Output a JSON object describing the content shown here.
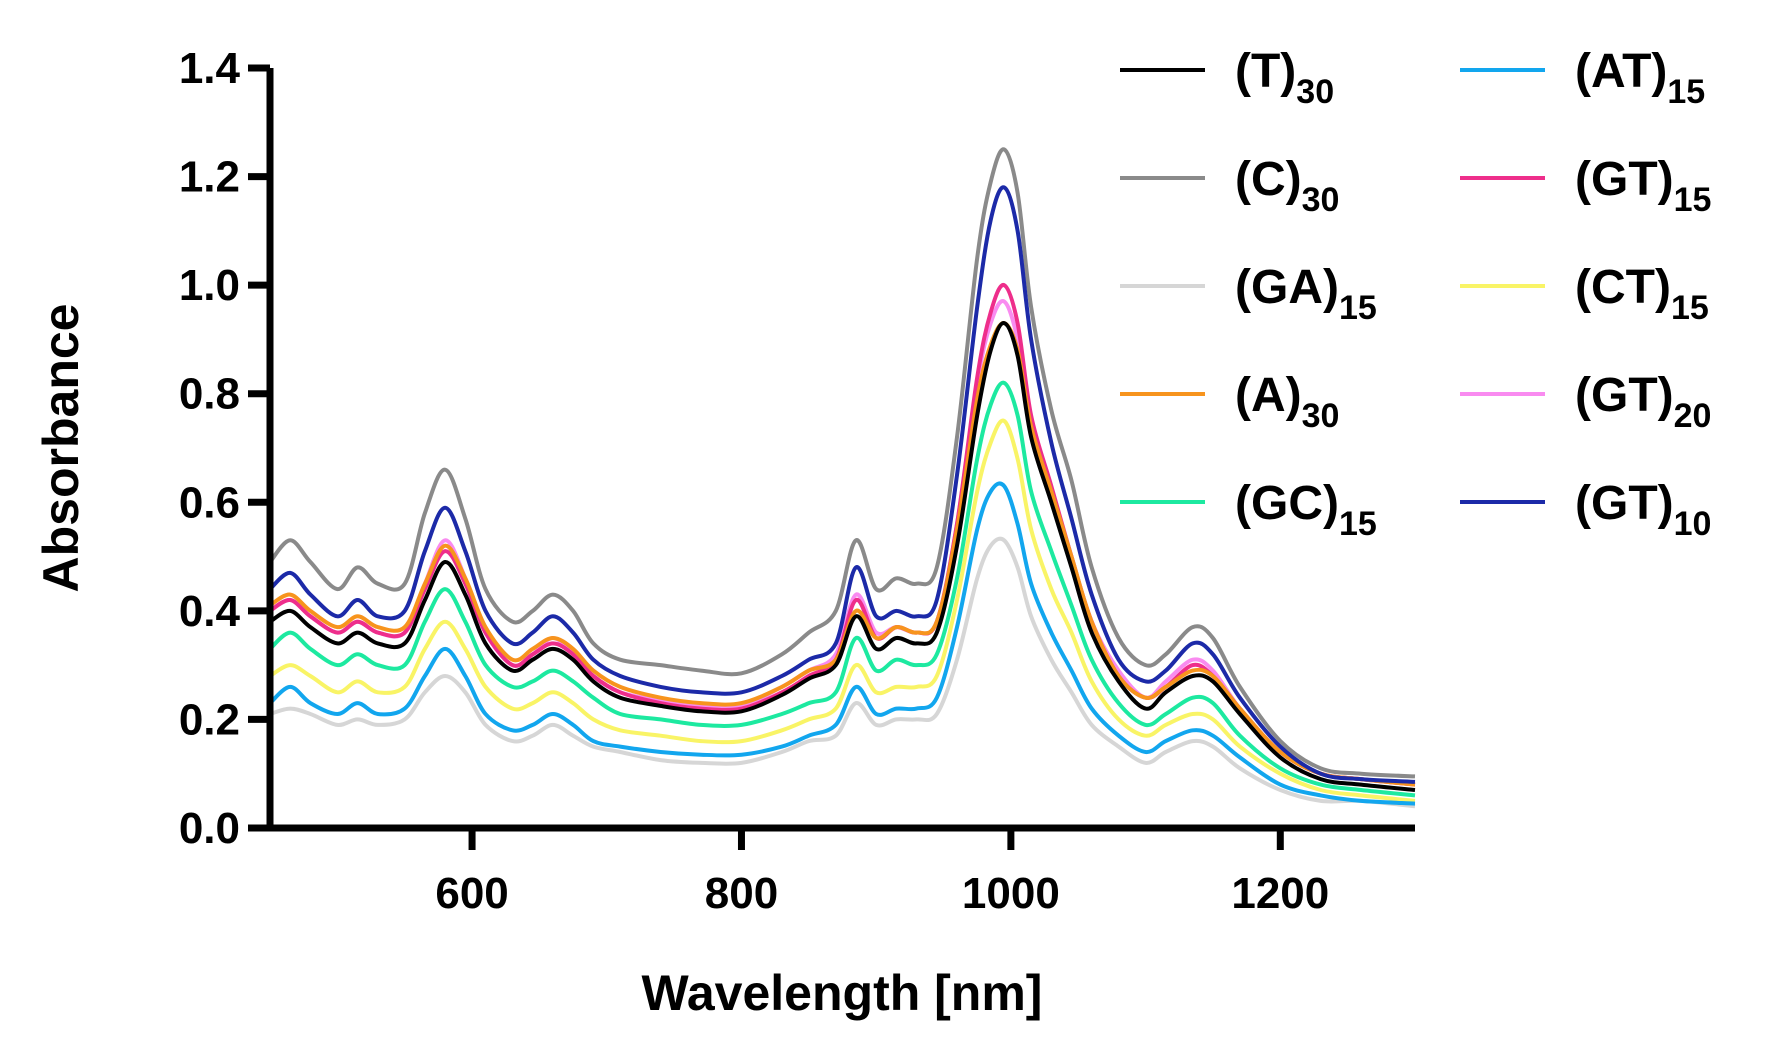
{
  "chart_data": {
    "type": "line",
    "xlabel": "Wavelength [nm]",
    "ylabel": "Absorbance",
    "xlim": [
      450,
      1300
    ],
    "ylim": [
      0.0,
      1.4
    ],
    "x_ticks": [
      600,
      800,
      1000,
      1200
    ],
    "x_tick_labels": [
      "600",
      "800",
      "1000",
      "1200"
    ],
    "y_ticks": [
      0.0,
      0.2,
      0.4,
      0.6,
      0.8,
      1.0,
      1.2,
      1.4
    ],
    "y_tick_labels": [
      "0.0",
      "0.2",
      "0.4",
      "0.6",
      "0.8",
      "1.0",
      "1.2",
      "1.4"
    ],
    "grid": false,
    "legend_position": "top-right",
    "x": [
      450,
      465,
      480,
      500,
      515,
      530,
      550,
      565,
      580,
      595,
      610,
      630,
      645,
      660,
      675,
      690,
      710,
      740,
      770,
      800,
      830,
      850,
      870,
      885,
      900,
      915,
      930,
      945,
      960,
      975,
      985,
      995,
      1005,
      1015,
      1030,
      1045,
      1060,
      1080,
      1100,
      1115,
      1135,
      1150,
      1170,
      1200,
      1230,
      1260,
      1300
    ],
    "series": [
      {
        "name": "(T)",
        "sub": "30",
        "color": "#000000",
        "values": [
          0.38,
          0.4,
          0.37,
          0.34,
          0.36,
          0.34,
          0.34,
          0.42,
          0.49,
          0.43,
          0.34,
          0.29,
          0.31,
          0.33,
          0.31,
          0.27,
          0.24,
          0.225,
          0.215,
          0.215,
          0.245,
          0.275,
          0.3,
          0.39,
          0.33,
          0.35,
          0.34,
          0.36,
          0.52,
          0.76,
          0.88,
          0.93,
          0.87,
          0.72,
          0.6,
          0.48,
          0.36,
          0.27,
          0.22,
          0.25,
          0.28,
          0.27,
          0.21,
          0.13,
          0.09,
          0.08,
          0.07
        ]
      },
      {
        "name": "(C)",
        "sub": "30",
        "color": "#8a8a8a",
        "values": [
          0.49,
          0.53,
          0.49,
          0.44,
          0.48,
          0.45,
          0.45,
          0.58,
          0.66,
          0.57,
          0.44,
          0.38,
          0.4,
          0.43,
          0.4,
          0.34,
          0.31,
          0.3,
          0.29,
          0.285,
          0.32,
          0.36,
          0.4,
          0.53,
          0.44,
          0.46,
          0.45,
          0.48,
          0.72,
          1.05,
          1.19,
          1.25,
          1.17,
          0.96,
          0.77,
          0.64,
          0.48,
          0.35,
          0.3,
          0.32,
          0.37,
          0.35,
          0.26,
          0.16,
          0.11,
          0.1,
          0.095
        ]
      },
      {
        "name": "(GA)",
        "sub": "15",
        "color": "#d6d6d6",
        "values": [
          0.21,
          0.22,
          0.21,
          0.19,
          0.2,
          0.19,
          0.2,
          0.25,
          0.28,
          0.25,
          0.19,
          0.16,
          0.17,
          0.19,
          0.17,
          0.15,
          0.14,
          0.125,
          0.12,
          0.12,
          0.14,
          0.16,
          0.17,
          0.23,
          0.19,
          0.2,
          0.2,
          0.21,
          0.31,
          0.46,
          0.52,
          0.53,
          0.48,
          0.39,
          0.31,
          0.25,
          0.19,
          0.15,
          0.12,
          0.14,
          0.16,
          0.15,
          0.11,
          0.07,
          0.05,
          0.05,
          0.04
        ]
      },
      {
        "name": "(A)",
        "sub": "30",
        "color": "#f7941d",
        "values": [
          0.41,
          0.43,
          0.4,
          0.37,
          0.39,
          0.37,
          0.37,
          0.45,
          0.52,
          0.46,
          0.37,
          0.31,
          0.33,
          0.35,
          0.33,
          0.29,
          0.26,
          0.24,
          0.23,
          0.23,
          0.26,
          0.29,
          0.31,
          0.4,
          0.35,
          0.37,
          0.36,
          0.38,
          0.55,
          0.79,
          0.89,
          0.93,
          0.88,
          0.74,
          0.62,
          0.5,
          0.38,
          0.28,
          0.24,
          0.26,
          0.29,
          0.28,
          0.22,
          0.14,
          0.1,
          0.09,
          0.08
        ]
      },
      {
        "name": "(GC)",
        "sub": "15",
        "color": "#1de9a0",
        "values": [
          0.33,
          0.36,
          0.33,
          0.3,
          0.32,
          0.3,
          0.3,
          0.38,
          0.44,
          0.38,
          0.3,
          0.26,
          0.27,
          0.29,
          0.27,
          0.24,
          0.21,
          0.2,
          0.19,
          0.19,
          0.21,
          0.23,
          0.25,
          0.35,
          0.29,
          0.31,
          0.3,
          0.32,
          0.46,
          0.68,
          0.78,
          0.82,
          0.76,
          0.62,
          0.51,
          0.41,
          0.31,
          0.23,
          0.19,
          0.21,
          0.24,
          0.23,
          0.17,
          0.11,
          0.08,
          0.07,
          0.06
        ]
      },
      {
        "name": "(AT)",
        "sub": "15",
        "color": "#12a6ee",
        "values": [
          0.23,
          0.26,
          0.23,
          0.21,
          0.23,
          0.21,
          0.22,
          0.28,
          0.33,
          0.28,
          0.21,
          0.18,
          0.19,
          0.21,
          0.19,
          0.16,
          0.15,
          0.14,
          0.135,
          0.135,
          0.15,
          0.17,
          0.19,
          0.26,
          0.21,
          0.22,
          0.22,
          0.24,
          0.37,
          0.55,
          0.62,
          0.63,
          0.56,
          0.45,
          0.36,
          0.29,
          0.22,
          0.17,
          0.14,
          0.16,
          0.18,
          0.17,
          0.13,
          0.08,
          0.06,
          0.05,
          0.045
        ]
      },
      {
        "name": "(GT)",
        "sub": "15",
        "color": "#ee2e8b",
        "values": [
          0.4,
          0.42,
          0.39,
          0.36,
          0.38,
          0.36,
          0.36,
          0.44,
          0.51,
          0.45,
          0.36,
          0.3,
          0.32,
          0.34,
          0.32,
          0.28,
          0.25,
          0.23,
          0.22,
          0.22,
          0.25,
          0.28,
          0.31,
          0.42,
          0.35,
          0.37,
          0.36,
          0.38,
          0.56,
          0.83,
          0.95,
          1.0,
          0.93,
          0.76,
          0.63,
          0.5,
          0.38,
          0.28,
          0.24,
          0.26,
          0.3,
          0.28,
          0.22,
          0.14,
          0.1,
          0.09,
          0.08
        ]
      },
      {
        "name": "(CT)",
        "sub": "15",
        "color": "#f9f466",
        "values": [
          0.28,
          0.3,
          0.28,
          0.25,
          0.27,
          0.25,
          0.26,
          0.33,
          0.38,
          0.33,
          0.26,
          0.22,
          0.23,
          0.25,
          0.23,
          0.2,
          0.18,
          0.17,
          0.16,
          0.16,
          0.18,
          0.2,
          0.22,
          0.3,
          0.25,
          0.26,
          0.26,
          0.28,
          0.42,
          0.62,
          0.71,
          0.75,
          0.68,
          0.55,
          0.44,
          0.36,
          0.27,
          0.2,
          0.17,
          0.19,
          0.21,
          0.2,
          0.15,
          0.1,
          0.07,
          0.06,
          0.05
        ]
      },
      {
        "name": "(GT)",
        "sub": "20",
        "color": "#f98bf0",
        "values": [
          0.4,
          0.42,
          0.39,
          0.36,
          0.38,
          0.36,
          0.36,
          0.45,
          0.53,
          0.46,
          0.36,
          0.3,
          0.32,
          0.35,
          0.32,
          0.28,
          0.25,
          0.235,
          0.225,
          0.225,
          0.26,
          0.29,
          0.32,
          0.43,
          0.36,
          0.37,
          0.36,
          0.38,
          0.56,
          0.82,
          0.93,
          0.97,
          0.9,
          0.75,
          0.62,
          0.5,
          0.38,
          0.29,
          0.24,
          0.27,
          0.31,
          0.29,
          0.22,
          0.14,
          0.1,
          0.09,
          0.08
        ]
      },
      {
        "name": "(GT)",
        "sub": "10",
        "color": "#1c2aa8",
        "values": [
          0.44,
          0.47,
          0.43,
          0.39,
          0.42,
          0.39,
          0.4,
          0.51,
          0.59,
          0.51,
          0.4,
          0.34,
          0.36,
          0.39,
          0.36,
          0.31,
          0.28,
          0.26,
          0.25,
          0.25,
          0.28,
          0.31,
          0.34,
          0.48,
          0.39,
          0.4,
          0.39,
          0.42,
          0.65,
          0.96,
          1.12,
          1.18,
          1.1,
          0.9,
          0.71,
          0.57,
          0.43,
          0.31,
          0.27,
          0.29,
          0.34,
          0.32,
          0.24,
          0.15,
          0.1,
          0.09,
          0.085
        ]
      }
    ]
  }
}
